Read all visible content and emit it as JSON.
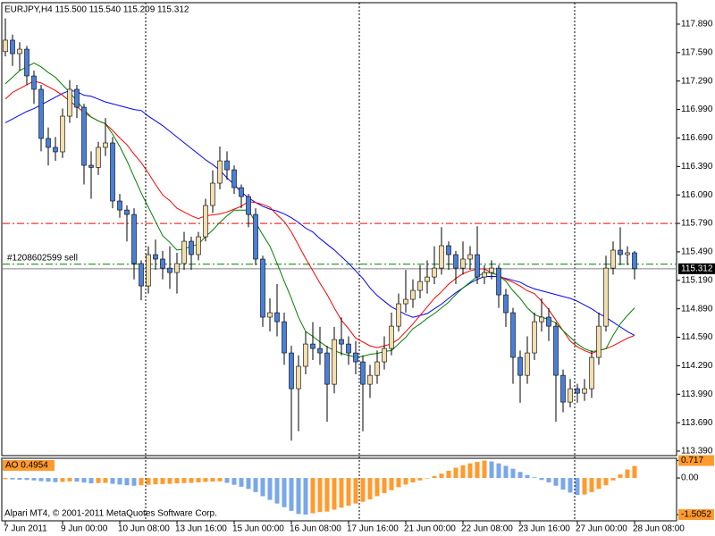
{
  "header": "EURJPY,H4  115.500 115.540 115.209 115.312",
  "footer": "Alpari MT4, © 2001-2011 MetaQuotes Software Corp.",
  "chart_data": [
    {
      "type": "candlestick",
      "categories": [
        "7 Jun 2011",
        null,
        null,
        null,
        null,
        null,
        null,
        null,
        "9 Jun 00:00",
        null,
        null,
        null,
        null,
        null,
        null,
        null,
        "10 Jun 08:00",
        null,
        null,
        null,
        null,
        null,
        null,
        null,
        "13 Jun 16:00",
        null,
        null,
        null,
        null,
        null,
        null,
        null,
        "15 Jun 00:00",
        null,
        null,
        null,
        null,
        null,
        null,
        null,
        "16 Jun 08:00",
        null,
        null,
        null,
        null,
        null,
        null,
        null,
        "17 Jun 16:00",
        null,
        null,
        null,
        null,
        null,
        null,
        null,
        "21 Jun 00:00",
        null,
        null,
        null,
        null,
        null,
        null,
        null,
        "22 Jun 08:00",
        null,
        null,
        null,
        null,
        null,
        null,
        null,
        "23 Jun 16:00",
        null,
        null,
        null,
        null,
        null,
        null,
        null,
        "27 Jun 00:00",
        null,
        null,
        null,
        null,
        null,
        null,
        null,
        "28 Jun 08:00"
      ],
      "open": [
        117.6,
        117.721,
        117.579,
        117.626,
        117.344,
        117.203,
        116.685,
        116.591,
        116.544,
        116.92,
        117.203,
        117.014,
        116.402,
        116.38,
        116.591,
        116.638,
        116.026,
        115.931,
        115.884,
        115.367,
        115.131,
        115.461,
        115.414,
        115.319,
        115.272,
        115.367,
        115.602,
        115.461,
        115.649,
        115.979,
        116.214,
        116.449,
        116.355,
        116.167,
        116.073,
        115.884,
        115.414,
        114.802,
        114.849,
        114.754,
        114.425,
        114.048,
        114.284,
        114.519,
        114.472,
        114.425,
        114.095,
        114.566,
        114.519,
        114.425,
        114.331,
        114.095,
        114.189,
        114.331,
        114.472,
        114.707,
        114.943,
        114.99,
        115.084,
        115.178,
        115.225,
        115.319,
        115.555,
        115.461,
        115.319,
        115.414,
        115.461,
        115.225,
        115.272,
        115.319,
        115.037,
        114.849,
        114.378,
        114.189,
        114.425,
        114.754,
        114.802,
        114.707,
        114.189,
        113.907,
        114.048,
        114.001,
        114.048,
        114.378,
        114.707,
        115.319,
        115.508,
        115.461,
        115.48
      ],
      "high": [
        117.95,
        117.78,
        117.7,
        117.66,
        117.4,
        117.25,
        116.8,
        116.7,
        117.0,
        117.3,
        117.25,
        117.05,
        116.55,
        116.65,
        116.9,
        116.7,
        116.1,
        115.98,
        115.95,
        115.4,
        115.55,
        115.62,
        115.5,
        115.55,
        115.48,
        115.7,
        115.65,
        115.7,
        116.05,
        116.35,
        116.6,
        116.55,
        116.4,
        116.2,
        116.1,
        115.95,
        115.45,
        115.0,
        115.15,
        114.85,
        114.5,
        114.4,
        114.65,
        114.75,
        114.7,
        114.5,
        114.7,
        114.8,
        114.6,
        114.55,
        114.4,
        114.3,
        114.45,
        114.6,
        114.85,
        115.05,
        115.3,
        115.2,
        115.35,
        115.4,
        115.55,
        115.75,
        115.6,
        115.5,
        115.6,
        115.55,
        115.76,
        115.35,
        115.4,
        115.35,
        115.1,
        114.9,
        114.45,
        114.6,
        114.85,
        115.0,
        114.9,
        114.75,
        114.25,
        114.15,
        114.1,
        114.15,
        114.45,
        114.85,
        115.45,
        115.6,
        115.75,
        115.55,
        115.5
      ],
      "low": [
        117.55,
        117.45,
        117.4,
        117.25,
        117.05,
        116.55,
        116.4,
        116.45,
        116.48,
        116.85,
        116.9,
        116.2,
        116.05,
        116.3,
        116.5,
        115.95,
        115.85,
        115.6,
        115.2,
        114.98,
        115.05,
        115.3,
        115.2,
        115.1,
        115.05,
        115.3,
        115.3,
        115.4,
        115.6,
        115.9,
        116.15,
        116.25,
        116.1,
        115.95,
        115.75,
        115.35,
        114.7,
        114.65,
        114.6,
        114.3,
        113.5,
        113.6,
        114.2,
        114.35,
        114.3,
        113.7,
        114.0,
        114.4,
        114.3,
        114.2,
        113.6,
        113.95,
        114.1,
        114.25,
        114.4,
        114.65,
        114.85,
        114.9,
        115.0,
        115.05,
        115.15,
        115.25,
        115.3,
        115.15,
        115.25,
        115.3,
        115.15,
        115.15,
        115.2,
        114.9,
        114.7,
        114.1,
        113.9,
        114.1,
        114.35,
        114.65,
        114.55,
        113.7,
        113.8,
        113.85,
        113.9,
        113.92,
        113.95,
        114.3,
        114.65,
        115.25,
        115.35,
        115.35,
        115.2
      ],
      "close": [
        117.721,
        117.579,
        117.626,
        117.344,
        117.203,
        116.685,
        116.591,
        116.544,
        116.92,
        117.203,
        117.014,
        116.402,
        116.38,
        116.591,
        116.638,
        116.026,
        115.931,
        115.884,
        115.367,
        115.131,
        115.461,
        115.414,
        115.319,
        115.272,
        115.367,
        115.602,
        115.461,
        115.649,
        115.979,
        116.214,
        116.449,
        116.355,
        116.167,
        116.073,
        115.884,
        115.414,
        114.802,
        114.849,
        114.754,
        114.425,
        114.048,
        114.284,
        114.519,
        114.472,
        114.425,
        114.095,
        114.566,
        114.519,
        114.425,
        114.331,
        114.095,
        114.189,
        114.331,
        114.472,
        114.707,
        114.943,
        114.99,
        115.084,
        115.178,
        115.225,
        115.319,
        115.555,
        115.461,
        115.319,
        115.414,
        115.461,
        115.225,
        115.272,
        115.319,
        115.037,
        114.849,
        114.378,
        114.189,
        114.425,
        114.754,
        114.802,
        114.707,
        114.189,
        113.907,
        114.048,
        114.001,
        114.048,
        114.378,
        114.707,
        115.319,
        115.508,
        115.461,
        115.48,
        115.312
      ],
      "up_color": "#f2deae",
      "down_color": "#4a7fd8",
      "series": [
        {
          "color": "#0000ff",
          "values": [
            116.85,
            116.89,
            116.93,
            116.97,
            117.0,
            117.04,
            117.08,
            117.12,
            117.16,
            117.19,
            117.18,
            117.14,
            117.13,
            117.1,
            117.07,
            117.05,
            117.03,
            117.01,
            116.99,
            116.98,
            116.92,
            116.87,
            116.82,
            116.76,
            116.7,
            116.64,
            116.58,
            116.52,
            116.46,
            116.41,
            116.35,
            116.27,
            116.2,
            116.12,
            116.06,
            116.01,
            115.97,
            115.94,
            115.92,
            115.89,
            115.85,
            115.8,
            115.74,
            115.7,
            115.63,
            115.57,
            115.51,
            115.44,
            115.37,
            115.29,
            115.21,
            115.11,
            115.03,
            114.97,
            114.91,
            114.87,
            114.83,
            114.8,
            114.82,
            114.84,
            114.89,
            114.94,
            115.0,
            115.06,
            115.11,
            115.16,
            115.2,
            115.23,
            115.23,
            115.23,
            115.21,
            115.19,
            115.17,
            115.13,
            115.1,
            115.08,
            115.06,
            115.04,
            115.02,
            115.0,
            114.97,
            114.93,
            114.89,
            114.84,
            114.8,
            114.75,
            114.7,
            114.65,
            114.61
          ]
        },
        {
          "color": "#ff0000",
          "values": [
            117.1,
            117.17,
            117.21,
            117.25,
            117.29,
            117.27,
            117.23,
            117.19,
            117.14,
            117.08,
            117.02,
            116.96,
            116.91,
            116.87,
            116.84,
            116.77,
            116.69,
            116.62,
            116.52,
            116.43,
            116.32,
            116.2,
            116.09,
            116.03,
            115.95,
            115.91,
            115.87,
            115.84,
            115.87,
            115.88,
            115.89,
            115.91,
            115.94,
            115.97,
            116.02,
            116.01,
            115.99,
            115.96,
            115.88,
            115.81,
            115.7,
            115.56,
            115.42,
            115.29,
            115.16,
            115.04,
            114.9,
            114.77,
            114.68,
            114.58,
            114.54,
            114.5,
            114.48,
            114.5,
            114.52,
            114.57,
            114.65,
            114.73,
            114.82,
            114.91,
            115.0,
            115.07,
            115.15,
            115.21,
            115.26,
            115.29,
            115.31,
            115.31,
            115.27,
            115.24,
            115.2,
            115.17,
            115.13,
            115.08,
            115.05,
            114.97,
            114.88,
            114.77,
            114.66,
            114.55,
            114.49,
            114.45,
            114.42,
            114.45,
            114.47,
            114.5,
            114.54,
            114.58,
            114.61
          ]
        },
        {
          "color": "#008000",
          "values": [
            117.26,
            117.33,
            117.4,
            117.44,
            117.48,
            117.44,
            117.38,
            117.33,
            117.25,
            117.17,
            117.08,
            116.99,
            116.91,
            116.87,
            116.84,
            116.73,
            116.6,
            116.45,
            116.28,
            116.11,
            115.96,
            115.81,
            115.66,
            115.59,
            115.51,
            115.52,
            115.55,
            115.57,
            115.65,
            115.72,
            115.8,
            115.87,
            115.93,
            115.93,
            115.93,
            115.8,
            115.67,
            115.55,
            115.37,
            115.18,
            115.0,
            114.8,
            114.65,
            114.6,
            114.54,
            114.49,
            114.45,
            114.42,
            114.4,
            114.38,
            114.39,
            114.41,
            114.42,
            114.44,
            114.45,
            114.52,
            114.59,
            114.68,
            114.73,
            114.79,
            114.84,
            114.9,
            114.96,
            115.04,
            115.11,
            115.17,
            115.23,
            115.27,
            115.27,
            115.24,
            115.18,
            115.08,
            115.0,
            114.9,
            114.83,
            114.8,
            114.78,
            114.74,
            114.66,
            114.59,
            114.52,
            114.47,
            114.44,
            114.45,
            114.47,
            114.61,
            114.73,
            114.82,
            114.9
          ]
        }
      ],
      "ylim": [
        113.343,
        118.116
      ],
      "yticks": [
        {
          "value": 117.89,
          "label": "117.890"
        },
        {
          "value": 117.59,
          "label": "117.590"
        },
        {
          "value": 117.29,
          "label": "117.290"
        },
        {
          "value": 116.99,
          "label": "116.990"
        },
        {
          "value": 116.69,
          "label": "116.690"
        },
        {
          "value": 116.39,
          "label": "116.390"
        },
        {
          "value": 116.09,
          "label": "116.090"
        },
        {
          "value": 115.79,
          "label": "115.790"
        },
        {
          "value": 115.49,
          "label": "115.490"
        },
        {
          "value": 115.19,
          "label": "115.190"
        },
        {
          "value": 114.89,
          "label": "114.890"
        },
        {
          "value": 114.59,
          "label": "114.590"
        },
        {
          "value": 114.29,
          "label": "114.290"
        },
        {
          "value": 113.99,
          "label": "113.990"
        },
        {
          "value": 113.69,
          "label": "113.690"
        },
        {
          "value": 113.39,
          "label": "113.390"
        }
      ],
      "levels": [
        {
          "value": 115.79,
          "color": "#ff0000"
        }
      ],
      "order": {
        "label": "#1208602599 sell",
        "value": 115.36,
        "color": "#008000"
      },
      "bid": 115.312
    },
    {
      "type": "bar",
      "title": "AO 0.4954",
      "values": [
        -0.05,
        -0.06,
        -0.07,
        -0.08,
        -0.1,
        -0.13,
        -0.15,
        -0.17,
        -0.16,
        -0.14,
        -0.15,
        -0.19,
        -0.22,
        -0.21,
        -0.2,
        -0.24,
        -0.27,
        -0.3,
        -0.32,
        -0.3,
        -0.28,
        -0.26,
        -0.25,
        -0.24,
        -0.22,
        -0.21,
        -0.2,
        -0.18,
        -0.16,
        -0.15,
        -0.14,
        -0.2,
        -0.28,
        -0.36,
        -0.45,
        -0.58,
        -0.75,
        -0.9,
        -1.05,
        -1.2,
        -1.35,
        -1.48,
        -1.5052,
        -1.45,
        -1.4,
        -1.38,
        -1.3,
        -1.22,
        -1.14,
        -1.05,
        -0.98,
        -0.88,
        -0.75,
        -0.62,
        -0.5,
        -0.38,
        -0.27,
        -0.18,
        -0.1,
        -0.02,
        0.08,
        0.18,
        0.3,
        0.42,
        0.52,
        0.6,
        0.66,
        0.717,
        0.68,
        0.6,
        0.5,
        0.38,
        0.25,
        0.12,
        0.03,
        -0.08,
        -0.18,
        -0.32,
        -0.48,
        -0.6,
        -0.7,
        -0.68,
        -0.58,
        -0.45,
        -0.3,
        -0.1,
        0.15,
        0.35,
        0.4954
      ],
      "up_color": "#ff9a2e",
      "down_color": "#7aa7ea",
      "ylim": [
        -1.76,
        0.81
      ],
      "yticks": [
        {
          "value": 0.717,
          "label": "0.717"
        },
        {
          "value": 0,
          "label": "0.00"
        },
        {
          "value": -1.5052,
          "label": "-1.5052"
        }
      ]
    }
  ]
}
